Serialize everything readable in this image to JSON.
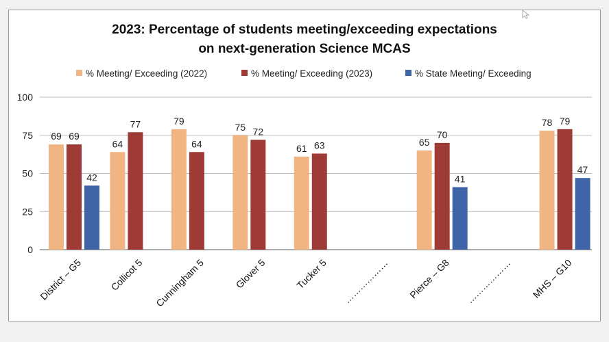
{
  "chart_data": {
    "type": "bar",
    "title_lines": [
      "2023: Percentage of students meeting/exceeding expectations",
      "on next-generation Science MCAS"
    ],
    "categories": [
      "District – G5",
      "Collicot 5",
      "Cunningham 5",
      "Glover 5",
      "Tucker 5",
      "………………",
      "Pierce – G8",
      "………………",
      "MHS – G10"
    ],
    "series": [
      {
        "name": "% Meeting/ Exceeding (2022)",
        "color": "#f0b583",
        "values": [
          69,
          64,
          79,
          75,
          61,
          null,
          65,
          null,
          78
        ]
      },
      {
        "name": "% Meeting/ Exceeding (2023)",
        "color": "#9e3b36",
        "values": [
          69,
          77,
          64,
          72,
          63,
          null,
          70,
          null,
          79
        ]
      },
      {
        "name": "% State Meeting/ Exceeding",
        "color": "#3f64a8",
        "values": [
          42,
          null,
          null,
          null,
          null,
          null,
          41,
          null,
          47
        ]
      }
    ],
    "ylim": [
      0,
      100
    ],
    "yticks": [
      0,
      25,
      50,
      75,
      100
    ],
    "grid": true,
    "legend": "top"
  }
}
